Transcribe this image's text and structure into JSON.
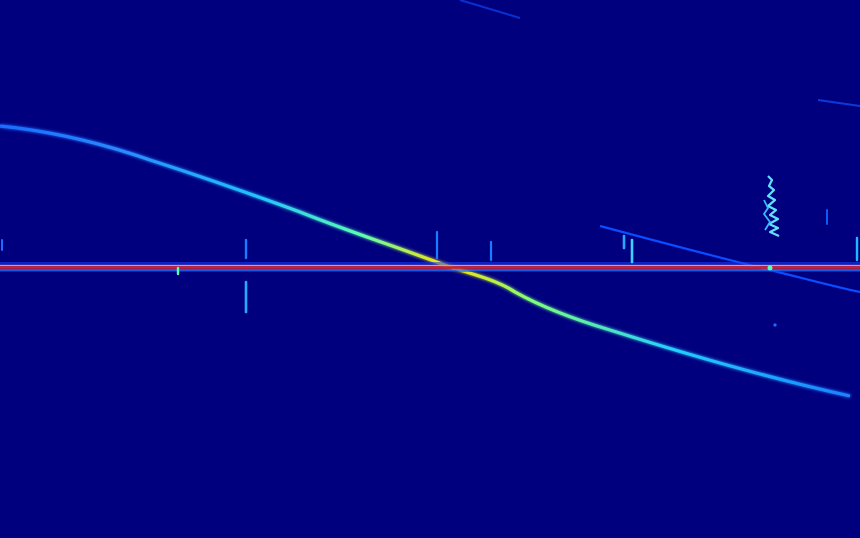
{
  "image": {
    "kind": "waterfall-spectrogram",
    "colormap": "jet",
    "colors": {
      "background": "#00007f",
      "weak": "#0050ff",
      "medium": "#00c8ff",
      "strong": "#7dff7a",
      "peak": "#ffd400",
      "carrier": "#d81e1e",
      "carrier_halo": "#ff9a3c"
    }
  }
}
